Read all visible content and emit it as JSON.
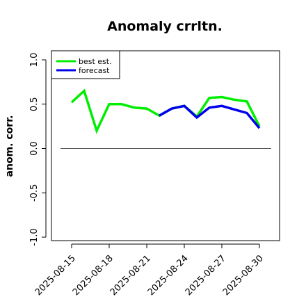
{
  "chart_data": {
    "type": "line",
    "title": "Anomaly crrltn.",
    "xlabel": "",
    "ylabel": "anom. corr.",
    "ylim": [
      -1.0,
      1.0
    ],
    "y_ticks": [
      "-1.0",
      "-0.5",
      "0.0",
      "0.5",
      "1.0"
    ],
    "y_tick_values": [
      -1.0,
      -0.5,
      0.0,
      0.5,
      1.0
    ],
    "x": [
      "2025-08-15",
      "2025-08-16",
      "2025-08-17",
      "2025-08-18",
      "2025-08-19",
      "2025-08-20",
      "2025-08-21",
      "2025-08-22",
      "2025-08-23",
      "2025-08-24",
      "2025-08-25",
      "2025-08-26",
      "2025-08-27",
      "2025-08-28",
      "2025-08-29",
      "2025-08-30"
    ],
    "x_ticks": [
      "2025-08-15",
      "2025-08-18",
      "2025-08-21",
      "2025-08-24",
      "2025-08-27",
      "2025-08-30"
    ],
    "x_tick_colors": [
      "#000000",
      "#000000",
      "#228B22",
      "#000000",
      "#000000",
      "#000000"
    ],
    "reference_line_y": 0.0,
    "series": [
      {
        "name": "best est.",
        "color": "#00ee00",
        "values": [
          0.52,
          0.65,
          0.2,
          0.5,
          0.5,
          0.46,
          0.45,
          0.37,
          0.45,
          0.48,
          0.36,
          0.57,
          0.58,
          0.55,
          0.53,
          0.25
        ]
      },
      {
        "name": "forecast",
        "color": "#0000ee",
        "values": [
          null,
          null,
          null,
          null,
          null,
          null,
          null,
          0.37,
          0.45,
          0.48,
          0.35,
          0.46,
          0.48,
          0.44,
          0.4,
          0.23
        ]
      }
    ],
    "legend_position": "top-left",
    "grid": false
  }
}
